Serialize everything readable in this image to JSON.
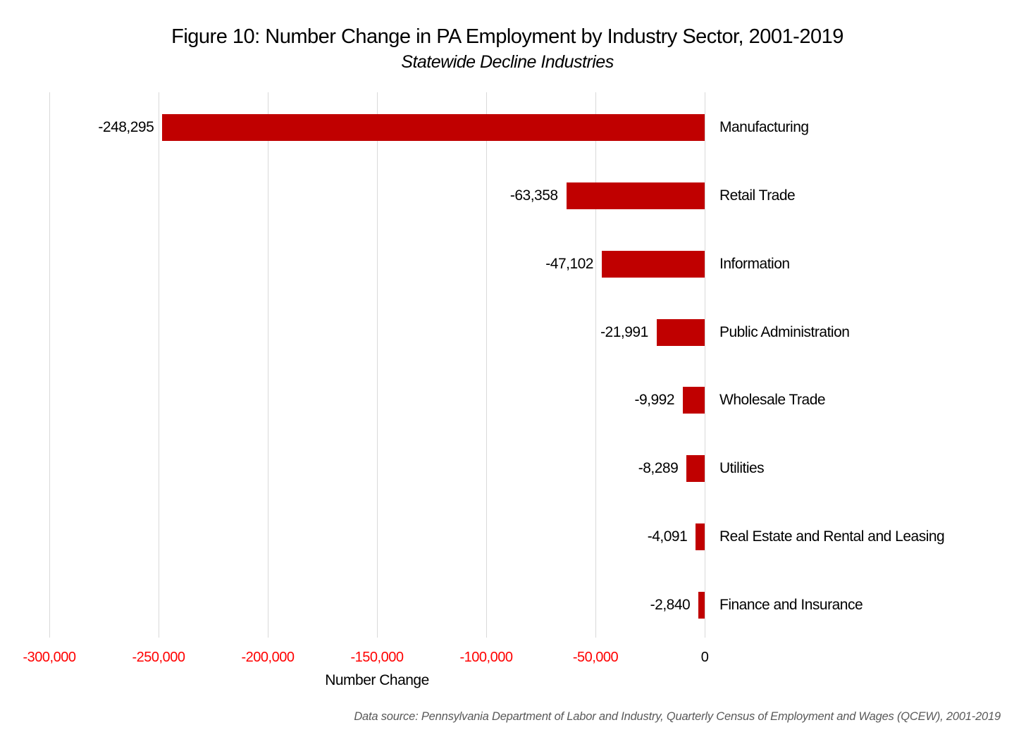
{
  "title": "Figure 10: Number Change in PA Employment by Industry Sector, 2001-2019",
  "subtitle": "Statewide Decline Industries",
  "source_note": "Data source: Pennsylvania Department of Labor and Industry, Quarterly Census of Employment and Wages (QCEW), 2001-2019",
  "chart_data": {
    "type": "bar",
    "orientation": "horizontal",
    "title": "Figure 10: Number Change in PA Employment by Industry Sector, 2001-2019",
    "subtitle": "Statewide Decline Industries",
    "xlabel": "Number Change",
    "ylabel": "",
    "xlim": [
      -300000,
      0
    ],
    "grid": true,
    "legend": false,
    "categories": [
      "Manufacturing",
      "Retail Trade",
      "Information",
      "Public Administration",
      "Wholesale Trade",
      "Utilities",
      "Real Estate and Rental and Leasing",
      "Finance and Insurance"
    ],
    "values": [
      -248295,
      -63358,
      -47102,
      -21991,
      -9992,
      -8289,
      -4091,
      -2840
    ],
    "data_labels": [
      "-248,295",
      "-63,358",
      "-47,102",
      "-21,991",
      "-9,992",
      "-8,289",
      "-4,091",
      "-2,840"
    ],
    "x_ticks": [
      -300000,
      -250000,
      -200000,
      -150000,
      -100000,
      -50000,
      0
    ],
    "x_tick_labels": [
      "-300,000",
      "-250,000",
      "-200,000",
      "-150,000",
      "-100,000",
      "-50,000",
      "0"
    ],
    "colors": {
      "bar": "#c00000",
      "negative_tick_label": "#ff0000",
      "zero_tick_label": "#000000",
      "gridline": "#d9d9d9",
      "text": "#000000",
      "source_text": "#595959"
    }
  }
}
